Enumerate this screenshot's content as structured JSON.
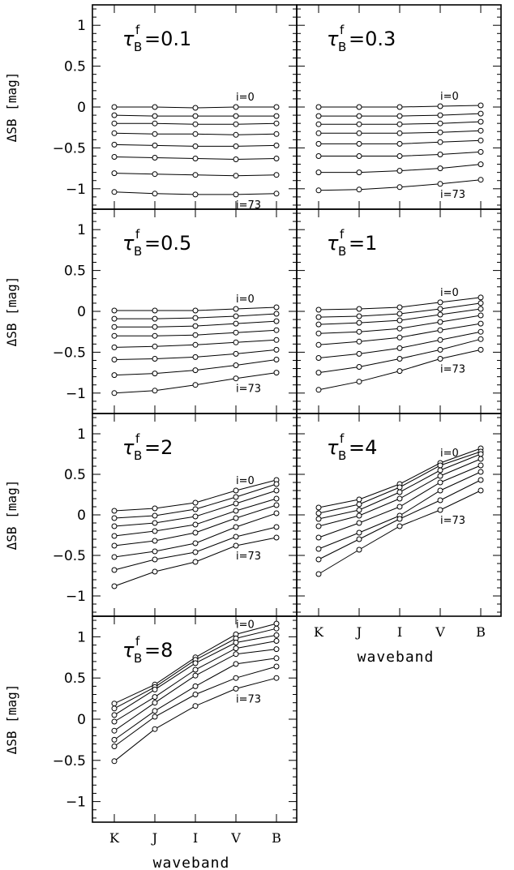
{
  "chart_data": {
    "type": "line",
    "categories": [
      "K",
      "J",
      "I",
      "V",
      "B"
    ],
    "xlabel": "waveband",
    "ylabel": "ΔSB [mag]",
    "panels": [
      {
        "title_prefix": "τ",
        "title_sup": "f",
        "title_sub": "B",
        "title_value": "=0.1",
        "ylim": [
          -1.25,
          1.25
        ],
        "yticks": [
          "1",
          "0.5",
          "0",
          "−0.5",
          "−1"
        ],
        "label_top": "i=0",
        "label_bottom": "i=73",
        "series": [
          {
            "values": [
              0.0,
              0.0,
              -0.01,
              0.0,
              0.0
            ]
          },
          {
            "values": [
              -0.1,
              -0.11,
              -0.11,
              -0.11,
              -0.11
            ]
          },
          {
            "values": [
              -0.2,
              -0.2,
              -0.21,
              -0.21,
              -0.2
            ]
          },
          {
            "values": [
              -0.32,
              -0.33,
              -0.33,
              -0.34,
              -0.33
            ]
          },
          {
            "values": [
              -0.46,
              -0.47,
              -0.48,
              -0.48,
              -0.47
            ]
          },
          {
            "values": [
              -0.61,
              -0.62,
              -0.63,
              -0.64,
              -0.63
            ]
          },
          {
            "values": [
              -0.81,
              -0.82,
              -0.83,
              -0.84,
              -0.83
            ]
          },
          {
            "values": [
              -1.04,
              -1.06,
              -1.07,
              -1.07,
              -1.06
            ]
          }
        ]
      },
      {
        "title_prefix": "τ",
        "title_sup": "f",
        "title_sub": "B",
        "title_value": "=0.3",
        "ylim": [
          -1.25,
          1.25
        ],
        "yticks": [
          "1",
          "0.5",
          "0",
          "−0.5",
          "−1"
        ],
        "label_top": "i=0",
        "label_bottom": "i=73",
        "series": [
          {
            "values": [
              0.0,
              0.0,
              0.0,
              0.01,
              0.02
            ]
          },
          {
            "values": [
              -0.11,
              -0.11,
              -0.11,
              -0.1,
              -0.08
            ]
          },
          {
            "values": [
              -0.21,
              -0.21,
              -0.21,
              -0.2,
              -0.18
            ]
          },
          {
            "values": [
              -0.32,
              -0.32,
              -0.32,
              -0.31,
              -0.29
            ]
          },
          {
            "values": [
              -0.45,
              -0.45,
              -0.45,
              -0.43,
              -0.41
            ]
          },
          {
            "values": [
              -0.6,
              -0.6,
              -0.6,
              -0.58,
              -0.55
            ]
          },
          {
            "values": [
              -0.8,
              -0.8,
              -0.78,
              -0.75,
              -0.7
            ]
          },
          {
            "values": [
              -1.02,
              -1.01,
              -0.98,
              -0.94,
              -0.89
            ]
          }
        ]
      },
      {
        "title_prefix": "τ",
        "title_sup": "f",
        "title_sub": "B",
        "title_value": "=0.5",
        "ylim": [
          -1.25,
          1.25
        ],
        "yticks": [
          "1",
          "0.5",
          "0",
          "−0.5",
          "−1"
        ],
        "label_top": "i=0",
        "label_bottom": "i=73",
        "series": [
          {
            "values": [
              0.01,
              0.01,
              0.01,
              0.03,
              0.05
            ]
          },
          {
            "values": [
              -0.09,
              -0.09,
              -0.08,
              -0.06,
              -0.03
            ]
          },
          {
            "values": [
              -0.19,
              -0.19,
              -0.18,
              -0.15,
              -0.12
            ]
          },
          {
            "values": [
              -0.3,
              -0.3,
              -0.29,
              -0.26,
              -0.23
            ]
          },
          {
            "values": [
              -0.44,
              -0.43,
              -0.41,
              -0.38,
              -0.35
            ]
          },
          {
            "values": [
              -0.59,
              -0.58,
              -0.56,
              -0.52,
              -0.47
            ]
          },
          {
            "values": [
              -0.78,
              -0.76,
              -0.72,
              -0.66,
              -0.59
            ]
          },
          {
            "values": [
              -1.0,
              -0.97,
              -0.9,
              -0.82,
              -0.75
            ]
          }
        ]
      },
      {
        "title_prefix": "τ",
        "title_sup": "f",
        "title_sub": "B",
        "title_value": "=1",
        "ylim": [
          -1.25,
          1.25
        ],
        "yticks": [
          "1",
          "0.5",
          "0",
          "−0.5",
          "−1"
        ],
        "label_top": "i=0",
        "label_bottom": "i=73",
        "series": [
          {
            "values": [
              0.02,
              0.03,
              0.05,
              0.11,
              0.17
            ]
          },
          {
            "values": [
              -0.07,
              -0.06,
              -0.03,
              0.03,
              0.1
            ]
          },
          {
            "values": [
              -0.16,
              -0.14,
              -0.11,
              -0.04,
              0.03
            ]
          },
          {
            "values": [
              -0.27,
              -0.25,
              -0.21,
              -0.13,
              -0.05
            ]
          },
          {
            "values": [
              -0.41,
              -0.37,
              -0.32,
              -0.23,
              -0.15
            ]
          },
          {
            "values": [
              -0.57,
              -0.52,
              -0.45,
              -0.35,
              -0.25
            ]
          },
          {
            "values": [
              -0.75,
              -0.68,
              -0.58,
              -0.47,
              -0.34
            ]
          },
          {
            "values": [
              -0.96,
              -0.86,
              -0.73,
              -0.58,
              -0.47
            ]
          }
        ]
      },
      {
        "title_prefix": "τ",
        "title_sup": "f",
        "title_sub": "B",
        "title_value": "=2",
        "ylim": [
          -1.25,
          1.25
        ],
        "yticks": [
          "1",
          "0.5",
          "0",
          "−0.5",
          "−1"
        ],
        "label_top": "i=0",
        "label_bottom": "i=73",
        "series": [
          {
            "values": [
              0.05,
              0.08,
              0.15,
              0.3,
              0.43
            ]
          },
          {
            "values": [
              -0.04,
              -0.01,
              0.07,
              0.22,
              0.38
            ]
          },
          {
            "values": [
              -0.14,
              -0.1,
              -0.02,
              0.14,
              0.3
            ]
          },
          {
            "values": [
              -0.26,
              -0.2,
              -0.12,
              0.05,
              0.2
            ]
          },
          {
            "values": [
              -0.38,
              -0.32,
              -0.22,
              -0.04,
              0.12
            ]
          },
          {
            "values": [
              -0.52,
              -0.45,
              -0.35,
              -0.15,
              0.02
            ]
          },
          {
            "values": [
              -0.68,
              -0.55,
              -0.46,
              -0.27,
              -0.15
            ]
          },
          {
            "values": [
              -0.88,
              -0.7,
              -0.58,
              -0.38,
              -0.28
            ]
          }
        ]
      },
      {
        "title_prefix": "τ",
        "title_sup": "f",
        "title_sub": "B",
        "title_value": "=4",
        "ylim": [
          -1.25,
          1.25
        ],
        "yticks": [
          "1",
          "0.5",
          "0",
          "−0.5",
          "−1"
        ],
        "label_top": "i=0",
        "label_bottom": "i=73",
        "series": [
          {
            "values": [
              0.09,
              0.19,
              0.38,
              0.64,
              0.82
            ]
          },
          {
            "values": [
              0.02,
              0.13,
              0.34,
              0.61,
              0.78
            ]
          },
          {
            "values": [
              -0.05,
              0.06,
              0.28,
              0.55,
              0.75
            ]
          },
          {
            "values": [
              -0.14,
              -0.01,
              0.2,
              0.48,
              0.69
            ]
          },
          {
            "values": [
              -0.28,
              -0.1,
              0.1,
              0.4,
              0.61
            ]
          },
          {
            "values": [
              -0.42,
              -0.22,
              -0.01,
              0.3,
              0.53
            ]
          },
          {
            "values": [
              -0.55,
              -0.3,
              -0.05,
              0.18,
              0.43
            ]
          },
          {
            "values": [
              -0.73,
              -0.43,
              -0.14,
              0.06,
              0.3
            ]
          }
        ]
      },
      {
        "title_prefix": "τ",
        "title_sup": "f",
        "title_sub": "B",
        "title_value": "=8",
        "ylim": [
          -1.25,
          1.25
        ],
        "yticks": [
          "1",
          "0.5",
          "0",
          "−0.5",
          "−1"
        ],
        "label_top": "i=0",
        "label_bottom": "i=73",
        "series": [
          {
            "values": [
              0.19,
              0.42,
              0.75,
              1.03,
              1.16
            ]
          },
          {
            "values": [
              0.13,
              0.39,
              0.72,
              0.98,
              1.1
            ]
          },
          {
            "values": [
              0.05,
              0.36,
              0.68,
              0.93,
              1.02
            ]
          },
          {
            "values": [
              -0.03,
              0.27,
              0.6,
              0.86,
              0.95
            ]
          },
          {
            "values": [
              -0.14,
              0.2,
              0.53,
              0.79,
              0.85
            ]
          },
          {
            "values": [
              -0.25,
              0.1,
              0.4,
              0.67,
              0.74
            ]
          },
          {
            "values": [
              -0.33,
              0.03,
              0.3,
              0.5,
              0.64
            ]
          },
          {
            "values": [
              -0.51,
              -0.12,
              0.16,
              0.37,
              0.5
            ]
          }
        ]
      }
    ]
  }
}
